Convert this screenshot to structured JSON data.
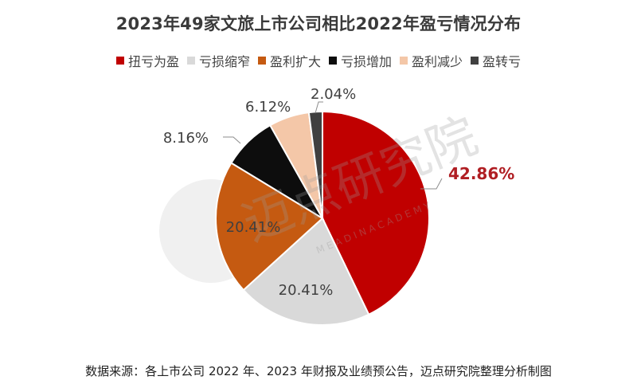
{
  "title": "2023年49家文旅上市公司相比2022年盈亏情况分布",
  "legend": [
    {
      "label": "扭亏为盈",
      "color": "#C00000"
    },
    {
      "label": "亏损缩窄",
      "color": "#D9D9D9"
    },
    {
      "label": "盈利扩大",
      "color": "#C55A11"
    },
    {
      "label": "亏损增加",
      "color": "#0D0D0D"
    },
    {
      "label": "盈利减少",
      "color": "#F4C7A8"
    },
    {
      "label": "盈转亏",
      "color": "#404040"
    }
  ],
  "footer": "数据来源：各上市公司 2022 年、2023 年财报及业绩预公告，迈点研究院整理分析制图",
  "watermark": {
    "text": "迈点研究院",
    "sub": "M E A D I N   A C A D E M Y"
  },
  "labels": {
    "s0": "42.86%",
    "s1": "20.41%",
    "s2": "20.41%",
    "s3": "8.16%",
    "s4": "6.12%",
    "s5": "2.04%"
  },
  "chart_data": {
    "type": "pie",
    "title": "2023年49家文旅上市公司相比2022年盈亏情况分布",
    "categories": [
      "扭亏为盈",
      "亏损缩窄",
      "盈利扩大",
      "亏损增加",
      "盈利减少",
      "盈转亏"
    ],
    "values": [
      42.86,
      20.41,
      20.41,
      8.16,
      6.12,
      2.04
    ],
    "colors": [
      "#C00000",
      "#D9D9D9",
      "#C55A11",
      "#0D0D0D",
      "#F4C7A8",
      "#404040"
    ],
    "unit": "%",
    "start_angle": "12 o'clock, clockwise",
    "legend_position": "top",
    "source": "数据来源：各上市公司 2022 年、2023 年财报及业绩预公告，迈点研究院整理分析制图"
  }
}
